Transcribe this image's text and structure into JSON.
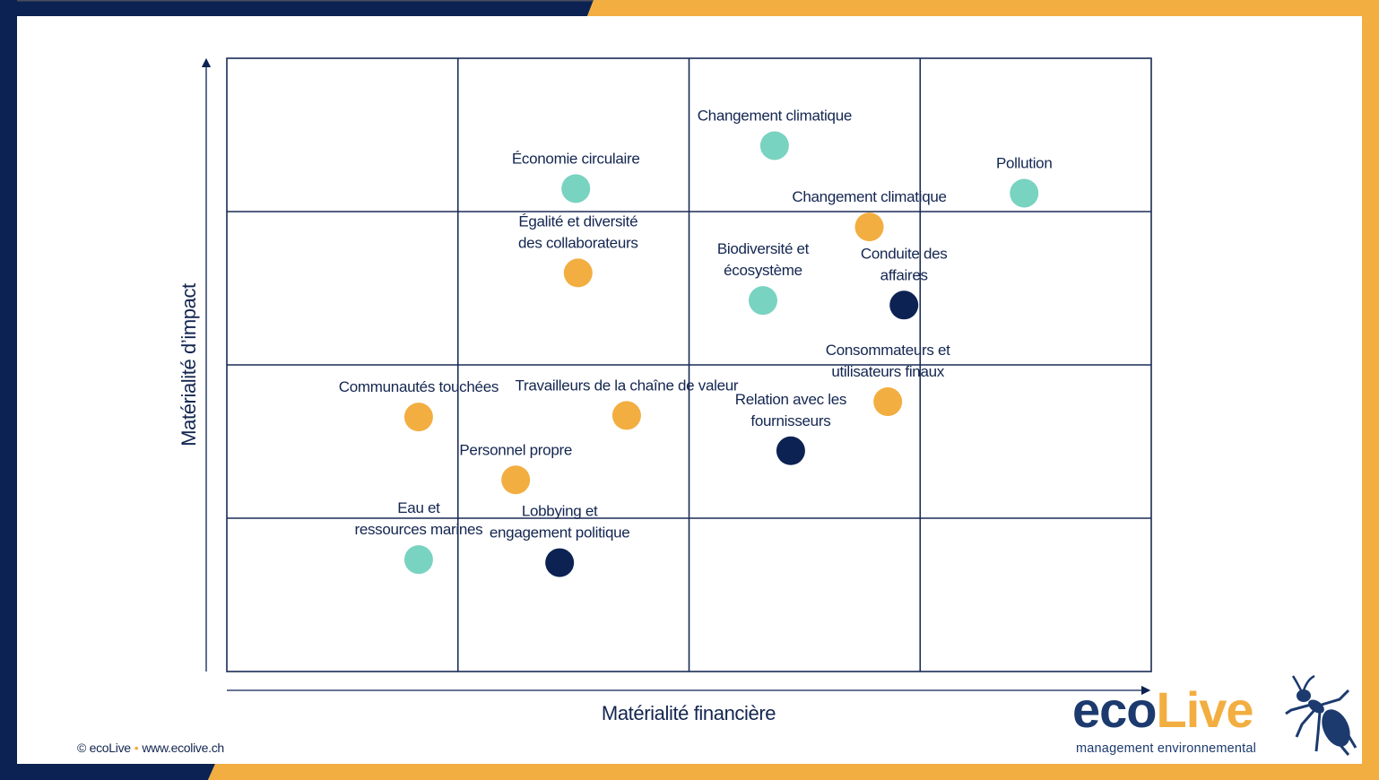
{
  "colors": {
    "navy": "#0c2252",
    "orange": "#f2ae40",
    "teal": "#79d3c1",
    "grid": "#1a2b55",
    "text": "#132650"
  },
  "footer": {
    "copyright": "© ecoLive",
    "separator": "•",
    "website": "www.ecolive.ch"
  },
  "logo": {
    "part1": "eco",
    "part2": "Live",
    "tagline": "management environnemental",
    "icon": "ant-icon"
  },
  "chart_data": {
    "type": "scatter",
    "title": "",
    "xlabel": "Matérialité financière",
    "ylabel": "Matérialité d’impact",
    "xlim": [
      0,
      4
    ],
    "ylim": [
      0,
      4
    ],
    "grid": true,
    "grid_divisions": {
      "x": 4,
      "y": 4
    },
    "legend": "none",
    "categories": {
      "environment": "#79d3c1",
      "social": "#f2ae40",
      "governance": "#0c2252"
    },
    "points": [
      {
        "label": [
          "Économie circulaire"
        ],
        "x": 1.51,
        "y": 3.15,
        "category": "environment"
      },
      {
        "label": [
          "Changement climatique"
        ],
        "x": 2.37,
        "y": 3.43,
        "category": "environment"
      },
      {
        "label": [
          "Pollution"
        ],
        "x": 3.45,
        "y": 3.12,
        "category": "environment"
      },
      {
        "label": [
          "Changement climatique"
        ],
        "x": 2.78,
        "y": 2.9,
        "category": "social"
      },
      {
        "label": [
          "Égalité et diversité",
          "des collaborateurs"
        ],
        "x": 1.52,
        "y": 2.6,
        "category": "social"
      },
      {
        "label": [
          "Biodiversité et",
          "écosystème"
        ],
        "x": 2.32,
        "y": 2.42,
        "category": "environment"
      },
      {
        "label": [
          "Conduite des",
          "affaires"
        ],
        "x": 2.93,
        "y": 2.39,
        "category": "governance"
      },
      {
        "label": [
          "Consommateurs et",
          "utilisateurs finaux"
        ],
        "x": 2.86,
        "y": 1.76,
        "category": "social"
      },
      {
        "label": [
          "Relation avec les",
          "fournisseurs"
        ],
        "x": 2.44,
        "y": 1.44,
        "category": "governance"
      },
      {
        "label": [
          "Communautés touchées"
        ],
        "x": 0.83,
        "y": 1.66,
        "category": "social"
      },
      {
        "label": [
          "Travailleurs de la chaîne de valeur"
        ],
        "x": 1.73,
        "y": 1.67,
        "category": "social"
      },
      {
        "label": [
          "Personnel propre"
        ],
        "x": 1.25,
        "y": 1.25,
        "category": "social"
      },
      {
        "label": [
          "Eau et",
          "ressources marines"
        ],
        "x": 0.83,
        "y": 0.73,
        "category": "environment"
      },
      {
        "label": [
          "Lobbying et",
          "engagement politique"
        ],
        "x": 1.44,
        "y": 0.71,
        "category": "governance"
      }
    ]
  }
}
